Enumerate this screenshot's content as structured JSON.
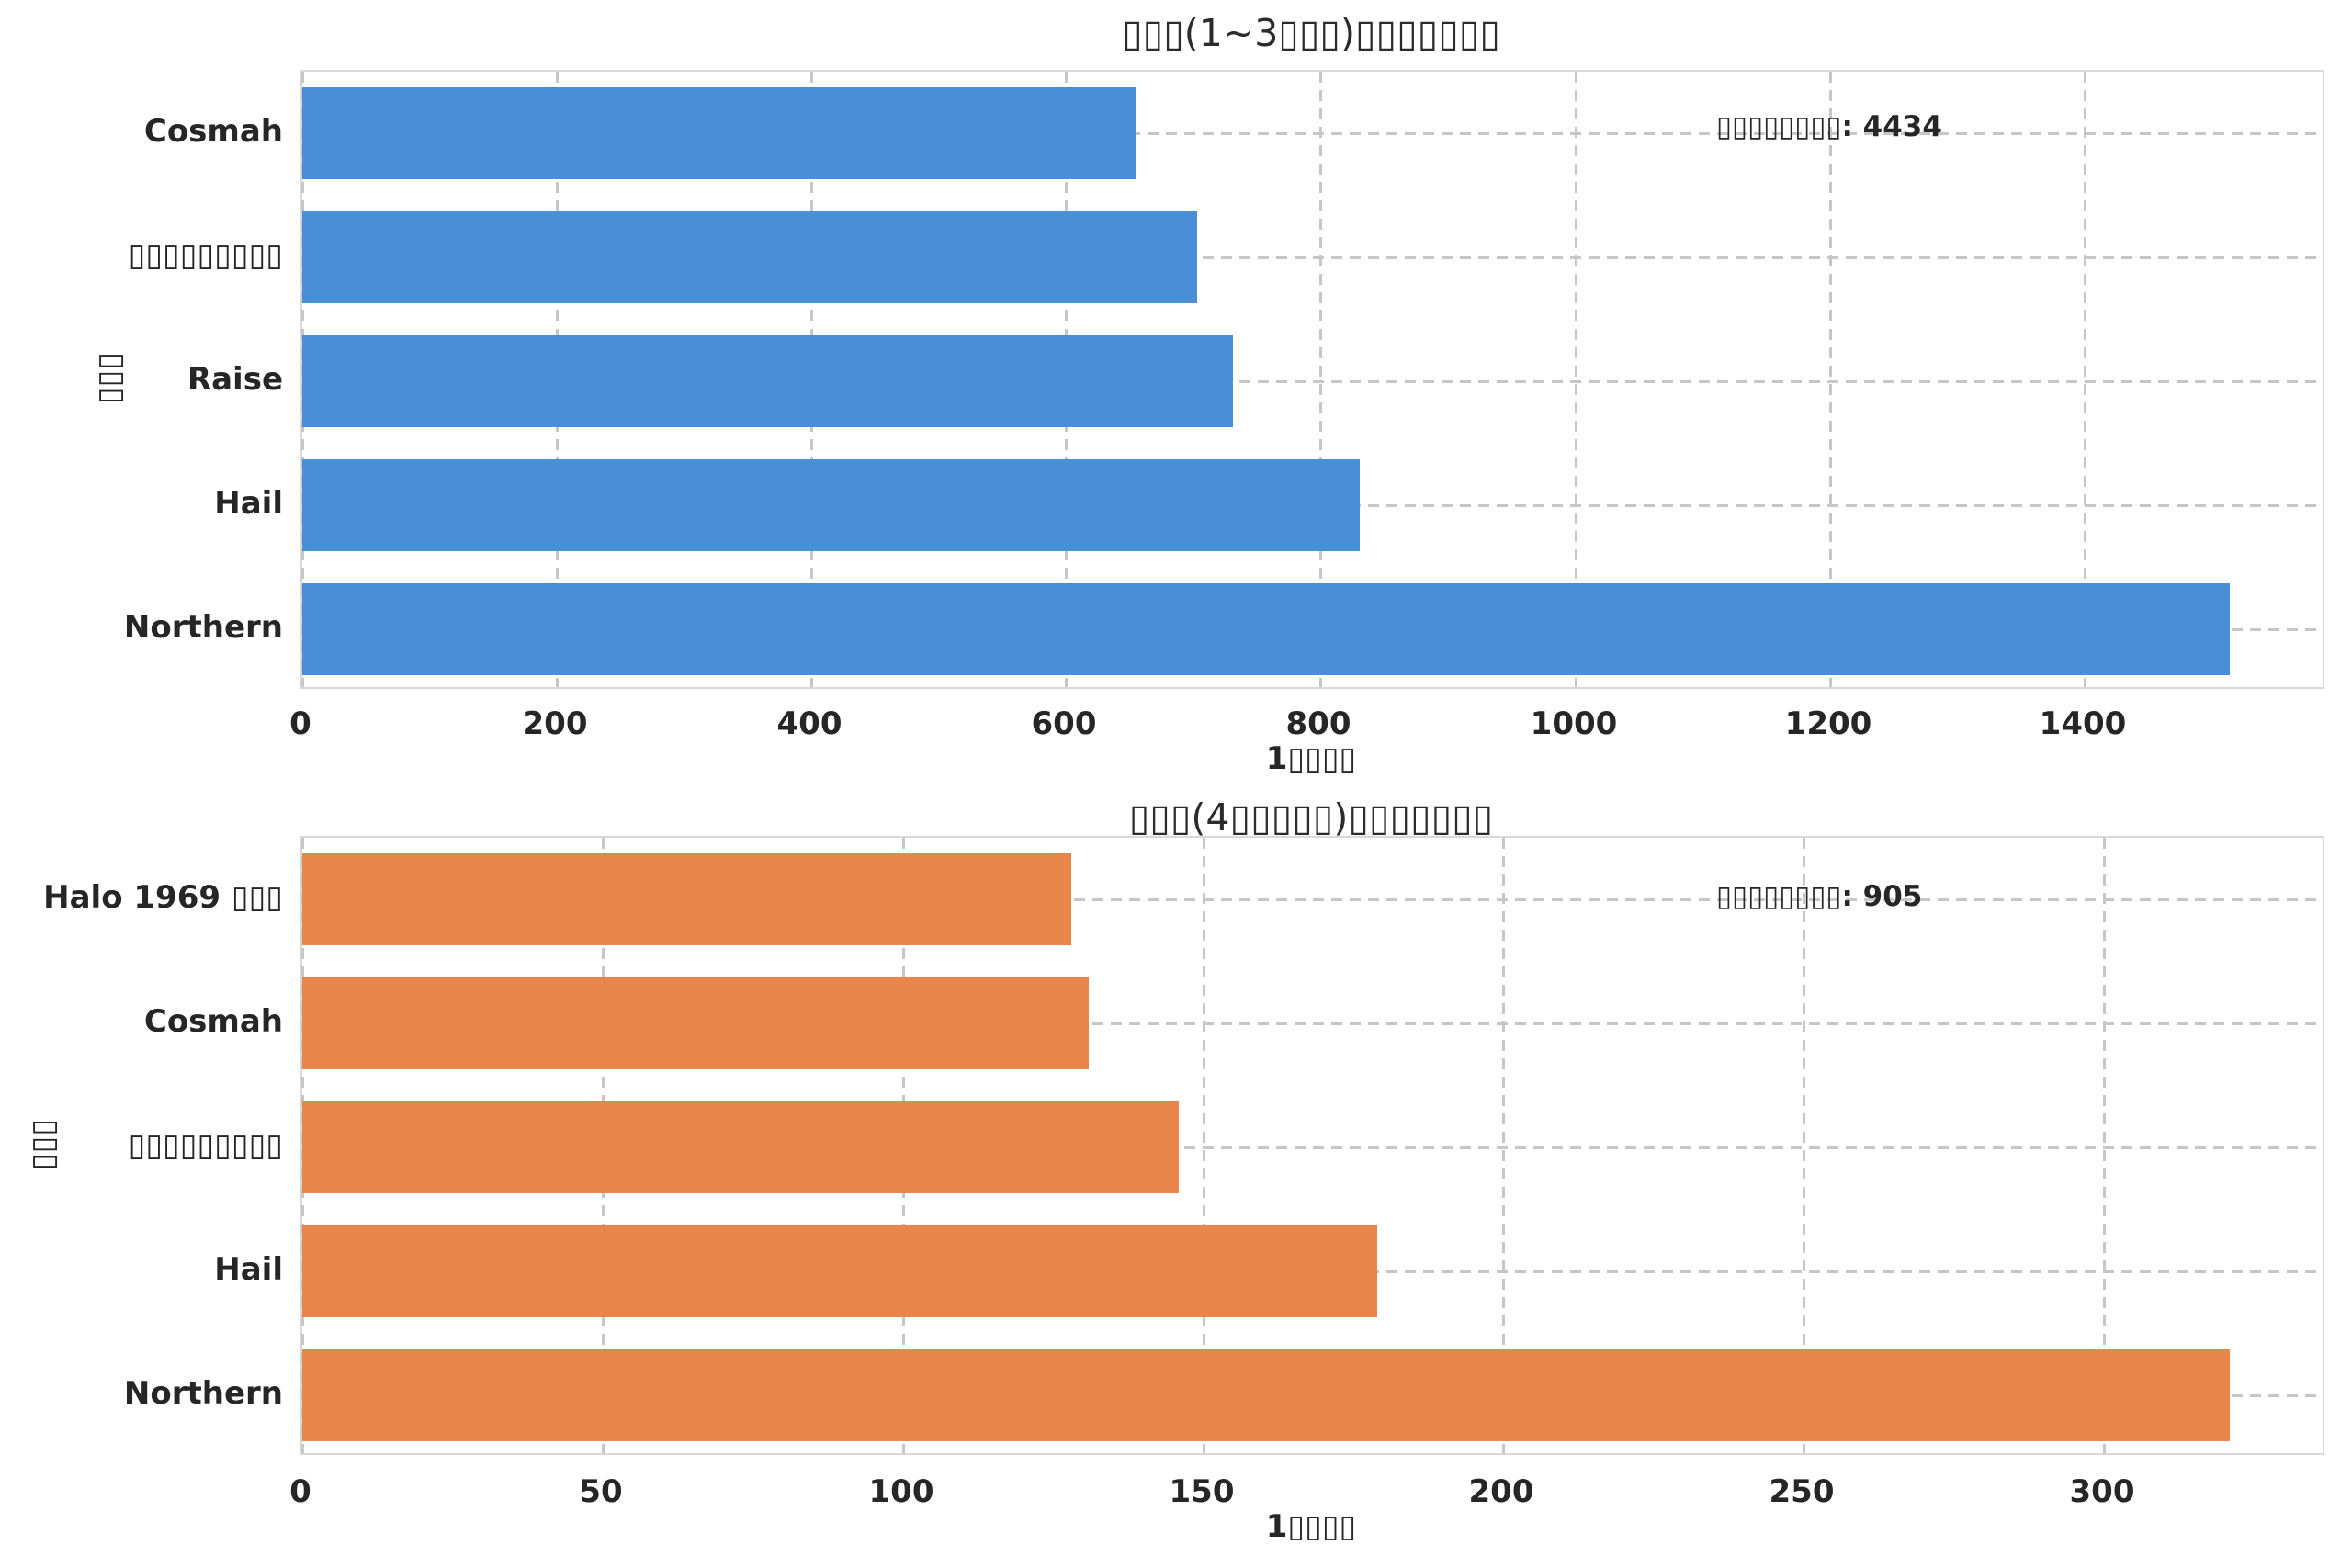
{
  "page": {
    "background": "#ffffff",
    "text_color": "#262626",
    "grid_color": "#c7c7c7",
    "border_color": "#d8d8d8"
  },
  "chart_data": [
    {
      "type": "bar",
      "orientation": "horizontal",
      "title": "▯▯▯(1~3▯▯▯)▯▯▯▯▯▯▯",
      "xlabel": "1▯▯▯▯",
      "ylabel": "▯▯▯",
      "categories": [
        "Cosmah",
        "▯▯▯▯▯▯▯▯▯",
        "Raise",
        "Hail",
        "Northern"
      ],
      "values": [
        655,
        703,
        731,
        831,
        1514
      ],
      "xticks": [
        "0",
        "200",
        "400",
        "600",
        "800",
        "1000",
        "1200",
        "1400"
      ],
      "xtick_values": [
        0,
        200,
        400,
        600,
        800,
        1000,
        1200,
        1400
      ],
      "xlim": [
        0,
        1590
      ],
      "bar_color": "#4a8ed6",
      "annotation": "▯▯▯▯▯▯▯▯: 4434",
      "grid": true,
      "legend": null
    },
    {
      "type": "bar",
      "orientation": "horizontal",
      "title": "▯▯▯(4▯▯▯▯▯)▯▯▯▯▯▯▯",
      "xlabel": "1▯▯▯▯",
      "ylabel": "▯▯▯",
      "categories": [
        "Halo 1969 ▯▯▯",
        "Cosmah",
        "▯▯▯▯▯▯▯▯▯",
        "Hail",
        "Northern"
      ],
      "values": [
        128,
        131,
        146,
        179,
        321
      ],
      "xticks": [
        "0",
        "50",
        "100",
        "150",
        "200",
        "250",
        "300"
      ],
      "xtick_values": [
        0,
        50,
        100,
        150,
        200,
        250,
        300
      ],
      "xlim": [
        0,
        337
      ],
      "bar_color": "#e8864b",
      "annotation": "▯▯▯▯▯▯▯▯: 905",
      "grid": true,
      "legend": null
    }
  ]
}
